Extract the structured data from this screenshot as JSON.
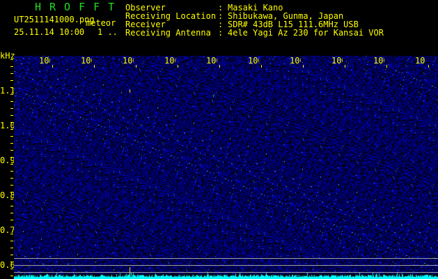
{
  "header": {
    "app_title": "HROFFT",
    "filename": "UT2511141000.png",
    "mode": "meteor",
    "datetime": "25.11.14 10:00",
    "count": "1 ..",
    "info": [
      {
        "label": "Observer",
        "value": "Masaki Kano"
      },
      {
        "label": "Receiving Location",
        "value": "Shibukawa, Gunma, Japan"
      },
      {
        "label": "Receiver",
        "value": "SDR# 43dB L15 111.6MHz USB"
      },
      {
        "label": "Receiving Antenna",
        "value": "4ele Yagi Az 230 for Kansai VOR"
      }
    ]
  },
  "spectrogram": {
    "y_unit": "kHz",
    "y_ticks": [
      "1.1",
      "1.0",
      "0.9",
      "0.8",
      "0.7",
      "0.6"
    ],
    "x_ticks": [
      "1001",
      "1002",
      "1003",
      "1004",
      "1005",
      "1006",
      "1007",
      "1008",
      "1009",
      "1010"
    ],
    "colors": {
      "background": "#000000",
      "noise": "#1a1aff",
      "text": "#ffff00",
      "title": "#22dd22",
      "level": "#00ffff",
      "marker_lines": "#a0a0a0"
    }
  }
}
